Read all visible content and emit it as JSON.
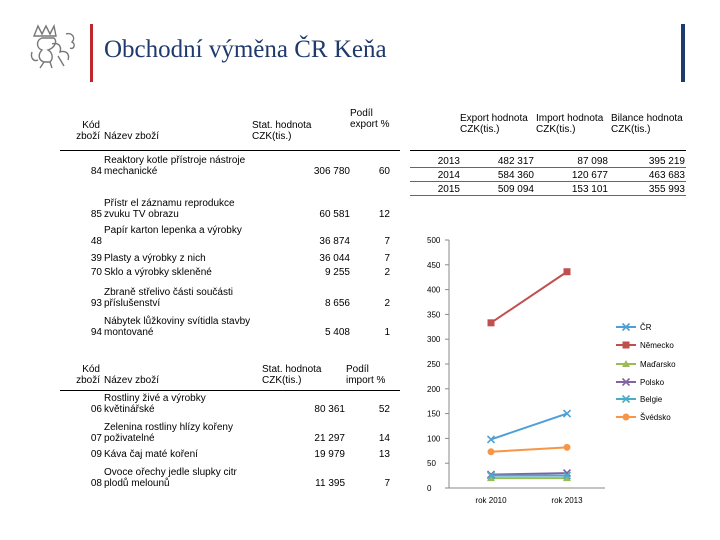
{
  "header": {
    "title": "Obchodní výměna ČR Keňa",
    "accent_red": "#c0272d",
    "accent_blue": "#1f3a6d",
    "logo": "czech-lion-emblem"
  },
  "export_table": {
    "headers": {
      "code": "Kód zboží",
      "name": "Název zboží",
      "value": "Stat. hodnota CZK(tis.)",
      "share": "Podíl export %"
    },
    "rows": [
      {
        "code": "84",
        "name": "Reaktory kotle přístroje nástroje mechanické",
        "value": "306 780",
        "share": "60"
      },
      {
        "code": "85",
        "name": "Přístr el záznamu reprodukce zvuku TV obrazu",
        "value": "60 581",
        "share": "12"
      },
      {
        "code": "48",
        "name": "Papír karton lepenka a výrobky",
        "value": "36 874",
        "share": "7"
      },
      {
        "code": "39",
        "name": "Plasty a výrobky z nich",
        "value": "36 044",
        "share": "7"
      },
      {
        "code": "70",
        "name": "Sklo a výrobky skleněné",
        "value": "9 255",
        "share": "2"
      },
      {
        "code": "93",
        "name": "Zbraně střelivo části součásti příslušenství",
        "value": "8 656",
        "share": "2"
      },
      {
        "code": "94",
        "name": "Nábytek lůžkoviny svítidla stavby montované",
        "value": "5 408",
        "share": "1"
      }
    ]
  },
  "import_table": {
    "headers": {
      "code": "Kód zboží",
      "name": "Název zboží",
      "value": "Stat. hodnota CZK(tis.)",
      "share": "Podíl import %"
    },
    "rows": [
      {
        "code": "06",
        "name": "Rostliny živé a výrobky květinářské",
        "value": "80 361",
        "share": "52"
      },
      {
        "code": "07",
        "name": "Zelenina rostliny hlízy kořeny poživatelné",
        "value": "21 297",
        "share": "14"
      },
      {
        "code": "09",
        "name": "Káva čaj maté koření",
        "value": "19 979",
        "share": "13"
      },
      {
        "code": "08",
        "name": "Ovoce ořechy jedle slupky citr plodů melounů",
        "value": "11 395",
        "share": "7"
      }
    ]
  },
  "trade_table": {
    "headers": {
      "year": "",
      "export": "Export hodnota CZK(tis.)",
      "import": "Import hodnota CZK(tis.)",
      "balance": "Bilance hodnota CZK(tis.)"
    },
    "rows": [
      {
        "year": "2013",
        "export": "482 317",
        "import": "87 098",
        "balance": "395 219"
      },
      {
        "year": "2014",
        "export": "584 360",
        "import": "120 677",
        "balance": "463 683"
      },
      {
        "year": "2015",
        "export": "509 094",
        "import": "153 101",
        "balance": "355 993"
      }
    ]
  },
  "chart_data": {
    "type": "line",
    "categories": [
      "rok 2010",
      "rok 2013"
    ],
    "ylim": [
      0,
      500
    ],
    "yticks": [
      0,
      50,
      100,
      150,
      200,
      250,
      300,
      350,
      400,
      450,
      500
    ],
    "grid": false,
    "legend_position": "right",
    "series": [
      {
        "name": "ČR",
        "values": [
          98,
          150
        ],
        "color": "#4f9fd6",
        "marker": "x"
      },
      {
        "name": "Německo",
        "values": [
          333,
          436
        ],
        "color": "#c0504d",
        "marker": "square"
      },
      {
        "name": "Maďarsko",
        "values": [
          20,
          20
        ],
        "color": "#9bbb59",
        "marker": "triangle"
      },
      {
        "name": "Polsko",
        "values": [
          27,
          30
        ],
        "color": "#8064a2",
        "marker": "x"
      },
      {
        "name": "Belgie",
        "values": [
          25,
          25
        ],
        "color": "#4bacc6",
        "marker": "x"
      },
      {
        "name": "Švédsko",
        "values": [
          73,
          82
        ],
        "color": "#f79646",
        "marker": "circle"
      }
    ]
  }
}
